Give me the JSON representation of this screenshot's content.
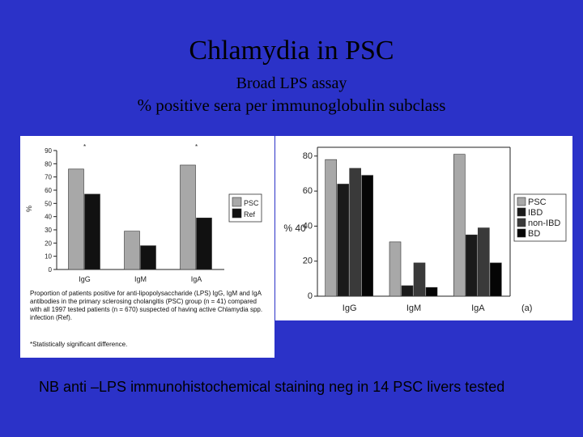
{
  "title": "Chlamydia in PSC",
  "subtitle1": "Broad LPS assay",
  "subtitle2": "% positive sera per immunoglobulin subclass",
  "note": "NB anti –LPS immunohistochemical staining  neg in 14 PSC livers tested",
  "left_caption": "Proportion of patients positive for anti-lipopolysaccharide (LPS) IgG, IgM and IgA antibodies in the primary sclerosing cholangitis (PSC) group (n = 41) compared with all 1997 tested patients (n = 670) suspected of having active Chlamydia spp. infection (Ref).",
  "left_footnote": "*Statistically significant difference.",
  "chart_data": [
    {
      "type": "bar",
      "categories": [
        "IgG",
        "IgM",
        "IgA"
      ],
      "series": [
        {
          "name": "PSC",
          "values": [
            76,
            29,
            79
          ],
          "color": "#a8a8a8"
        },
        {
          "name": "Ref",
          "values": [
            57,
            18,
            39
          ],
          "color": "#111111"
        }
      ],
      "ylabel": "%",
      "ylim": [
        0,
        90
      ],
      "yticks": [
        0,
        10,
        20,
        30,
        40,
        50,
        60,
        70,
        80,
        90
      ],
      "legend": "right",
      "significant_markers": [
        "*",
        "",
        "*"
      ]
    },
    {
      "type": "bar",
      "categories": [
        "IgG",
        "IgM",
        "IgA"
      ],
      "series": [
        {
          "name": "PSC",
          "values": [
            78,
            31,
            81
          ],
          "color": "#a8a8a8"
        },
        {
          "name": "IBD",
          "values": [
            64,
            6,
            35
          ],
          "color": "#1a1a1a"
        },
        {
          "name": "non-IBD",
          "values": [
            73,
            19,
            39
          ],
          "color": "#3a3a3a"
        },
        {
          "name": "BD",
          "values": [
            69,
            5,
            19
          ],
          "color": "#050505"
        }
      ],
      "ylabel": "% 40",
      "ylim": [
        0,
        85
      ],
      "yticks": [
        0,
        20,
        40,
        60,
        80
      ],
      "legend": "right",
      "panel_label": "(a)",
      "markers": [
        "*",
        "*",
        "*",
        "*",
        "*",
        "*"
      ]
    }
  ]
}
